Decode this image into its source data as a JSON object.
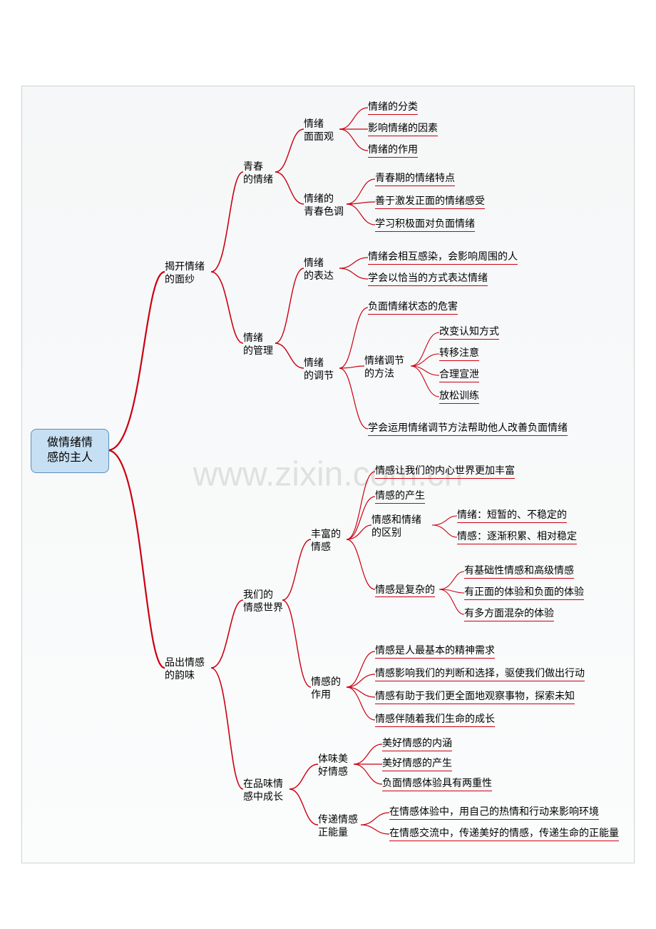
{
  "watermark": "www.zixin.com.cn",
  "line_color": "#cc0011",
  "root": {
    "label": "做情绪情\n感的主人",
    "bg": "#c7dff2",
    "border": "#5a8fbf"
  },
  "L1": {
    "a": "揭开情绪\n的面纱",
    "b": "品出情感\n的韵味"
  },
  "L2": {
    "a1": "青春\n的情绪",
    "a2": "情绪\n的管理",
    "b1": "我们的\n情感世界",
    "b2": "在品味情\n感中成长"
  },
  "L3": {
    "a1a": "情绪\n面面观",
    "a1b": "情绪的\n青春色调",
    "a2a": "情绪\n的表达",
    "a2b": "情绪\n的调节",
    "b1a": "丰富的\n情感",
    "b1b": "情感的\n作用",
    "b2a": "体味美\n好情感",
    "b2b": "传递情感\n正能量"
  },
  "L4": {
    "a1a1": "情绪的分类",
    "a1a2": "影响情绪的因素",
    "a1a3": "情绪的作用",
    "a1b1": "青春期的情绪特点",
    "a1b2": "善于激发正面的情绪感受",
    "a1b3": "学习积极面对负面情绪",
    "a2a1": "情绪会相互感染，会影响周围的人",
    "a2a2": "学会以恰当的方式表达情绪",
    "a2b1": "负面情绪状态的危害",
    "a2b2": "情绪调节\n的方法",
    "a2b2_1": "改变认知方式",
    "a2b2_2": "转移注意",
    "a2b2_3": "合理宣泄",
    "a2b2_4": "放松训练",
    "a2b3": "学会运用情绪调节方法帮助他人改善负面情绪",
    "b1a1": "情感让我们的内心世界更加丰富",
    "b1a2": "情感的产生",
    "b1a3": "情感和情绪\n的区别",
    "b1a3_1": "情绪：短暂的、不稳定的",
    "b1a3_2": "情感：逐渐积累、相对稳定",
    "b1a4": "情感是复杂的",
    "b1a4_1": "有基础性情感和高级情感",
    "b1a4_2": "有正面的体验和负面的体验",
    "b1a4_3": "有多方面混杂的体验",
    "b1b1": "情感是人最基本的精神需求",
    "b1b2": "情感影响我们的判断和选择，驱使我们做出行动",
    "b1b3": "情感有助于我们更全面地观察事物，探索未知",
    "b1b4": "情感伴随着我们生命的成长",
    "b2a1": "美好情感的内涵",
    "b2a2": "美好情感的产生",
    "b2a3": "负面情感体验具有两重性",
    "b2b1": "在情感体验中，用自己的热情和行动来影响环境",
    "b2b2": "在情感交流中，传递美好的情感，传递生命的正能量"
  }
}
